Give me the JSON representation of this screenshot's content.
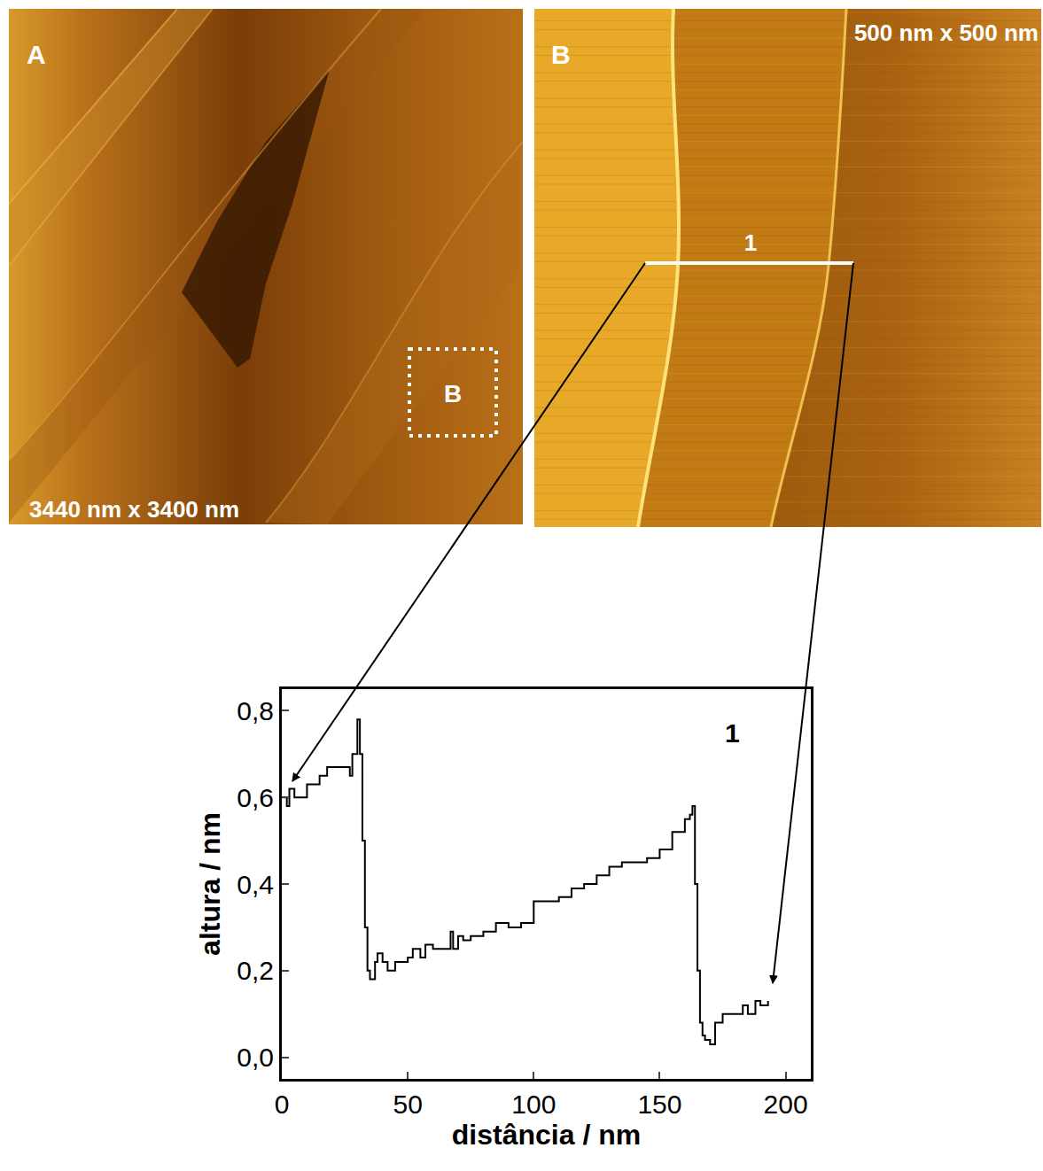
{
  "chart_data": {
    "type": "line",
    "x": [
      0,
      2,
      3,
      5,
      8,
      10,
      13,
      15,
      18,
      22,
      25,
      27,
      28,
      30,
      31,
      32,
      33,
      34,
      35,
      37,
      38,
      40,
      42,
      45,
      48,
      50,
      52,
      55,
      57,
      60,
      65,
      67,
      68,
      70,
      72,
      75,
      80,
      85,
      90,
      95,
      100,
      105,
      110,
      115,
      120,
      125,
      130,
      135,
      140,
      145,
      150,
      155,
      160,
      162,
      163,
      164,
      165,
      166,
      167,
      168,
      170,
      172,
      175,
      180,
      183,
      185,
      188,
      190,
      193
    ],
    "values": [
      0.6,
      0.58,
      0.62,
      0.6,
      0.6,
      0.63,
      0.63,
      0.65,
      0.67,
      0.67,
      0.67,
      0.65,
      0.7,
      0.78,
      0.7,
      0.5,
      0.3,
      0.2,
      0.18,
      0.22,
      0.24,
      0.22,
      0.2,
      0.22,
      0.22,
      0.23,
      0.25,
      0.23,
      0.26,
      0.25,
      0.25,
      0.29,
      0.25,
      0.28,
      0.27,
      0.28,
      0.29,
      0.31,
      0.3,
      0.31,
      0.36,
      0.36,
      0.37,
      0.39,
      0.4,
      0.42,
      0.44,
      0.45,
      0.45,
      0.46,
      0.48,
      0.52,
      0.55,
      0.56,
      0.58,
      0.4,
      0.2,
      0.08,
      0.05,
      0.04,
      0.03,
      0.08,
      0.1,
      0.1,
      0.12,
      0.1,
      0.13,
      0.12,
      0.13
    ],
    "color": "#000000",
    "line_style": "solid",
    "grid": false,
    "xlabel": "distância / nm",
    "ylabel": "altura / nm",
    "xlim": [
      0,
      210
    ],
    "ylim": [
      -0.05,
      0.85
    ],
    "xticks": [
      0,
      50,
      100,
      150,
      200
    ],
    "yticks": [
      {
        "value": 0,
        "label": "0,0"
      },
      {
        "value": 0.2,
        "label": "0,2"
      },
      {
        "value": 0.4,
        "label": "0,4"
      },
      {
        "value": 0.6,
        "label": "0,6"
      },
      {
        "value": 0.8,
        "label": "0,8"
      }
    ],
    "annotations": [
      "1"
    ]
  },
  "images": [
    {
      "panel": "A",
      "scan_size": "3440 nm x 3400 nm",
      "inset": "B"
    },
    {
      "panel": "B",
      "scan_size": "500 nm x 500 nm",
      "profile": "1"
    }
  ]
}
